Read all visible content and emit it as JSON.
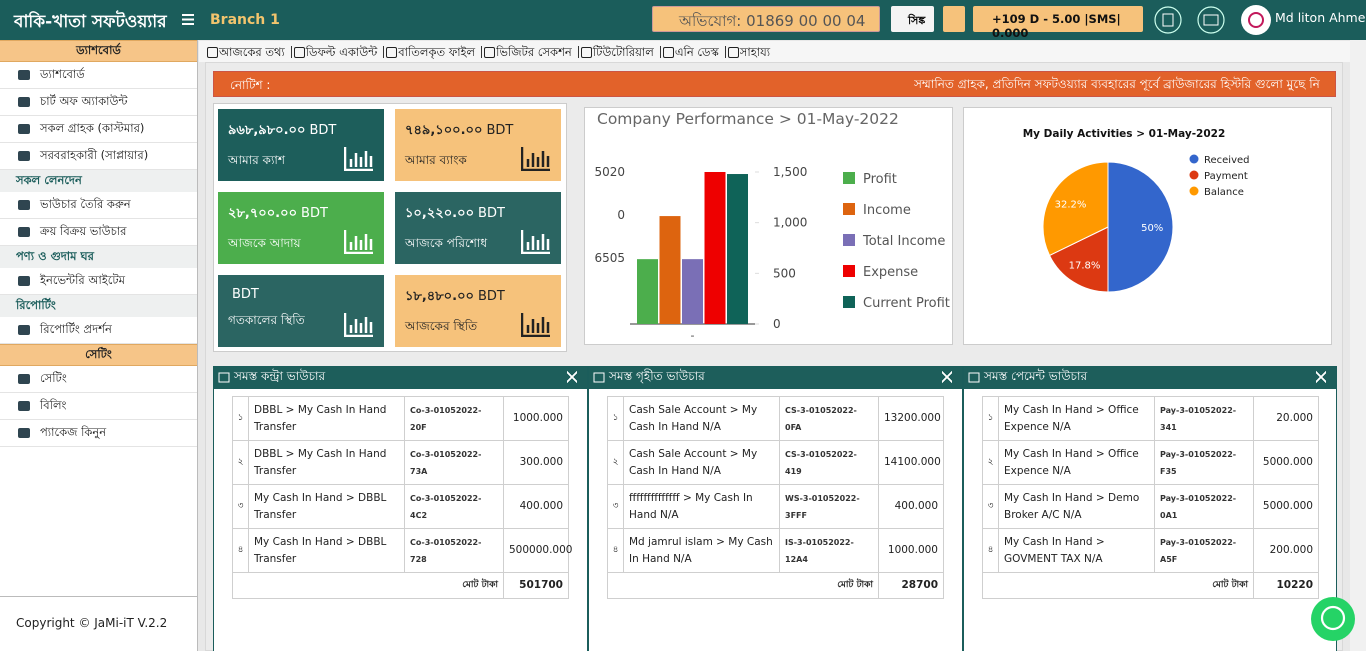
{
  "header": {
    "brand": "বাকি-খাতা সফটওয়্যার",
    "branch": "Branch 1",
    "complaint": "অভিযোগ: 01869 00 00 04",
    "sync": "সিঙ্ক",
    "balance": "+109 D - 5.00 |SMS| 0.000",
    "user": "Md liton Ahme"
  },
  "sidebar": {
    "menu": [
      {
        "type": "section",
        "label": "ড্যাশবোর্ড"
      },
      {
        "type": "item",
        "label": "ড্যাশবোর্ড"
      },
      {
        "type": "item",
        "label": "চার্ট অফ অ্যাকাউন্ট"
      },
      {
        "type": "item",
        "label": "সকল গ্রাহক (কাস্টমার)"
      },
      {
        "type": "item",
        "label": "সরবরাহকারী (সাপ্লায়ার)"
      },
      {
        "type": "group",
        "label": "সকল লেনদেন"
      },
      {
        "type": "item",
        "label": "ভাউচার তৈরি করুন"
      },
      {
        "type": "item",
        "label": "ক্রয় বিক্রয় ভাউচার"
      },
      {
        "type": "group",
        "label": "পণ্য ও গুদাম ঘর"
      },
      {
        "type": "item",
        "label": "ইনভেন্টরি আইটেম"
      },
      {
        "type": "group",
        "label": "রিপোর্টিং"
      },
      {
        "type": "item",
        "label": "রিপোর্টিং প্রদর্শন"
      },
      {
        "type": "section",
        "label": "সেটিং"
      },
      {
        "type": "item",
        "label": "সেটিং"
      },
      {
        "type": "item",
        "label": "বিলিং"
      },
      {
        "type": "item",
        "label": "প্যাকেজ কিনুন"
      }
    ],
    "copyright": "Copyright © JaMi-iT V.2.2"
  },
  "nav": [
    "আজকের তথ্য",
    "ডিফল্ট একাউন্ট",
    "বাতিলকৃত ফাইল",
    "ভিজিটর সেকশন",
    "টিউটোরিয়াল",
    "এনি ডেস্ক",
    "সাহায্য"
  ],
  "notice": {
    "label": "নোটিশ :",
    "text": "সম্মানিত গ্রাহক, প্রতিদিন সফটওয়্যার ব্যবহারের পূর্বে ব্রাউজারের হিস্টরি গুলো মুছে নি"
  },
  "cards": [
    {
      "amount": "৯৬৮,৯৮০.০০",
      "currency": "BDT",
      "label": "আমার ক্যাশ",
      "color": "#1d5e5b",
      "text_color": "#ffffff"
    },
    {
      "amount": "৭৪৯,১০০.০০",
      "currency": "BDT",
      "label": "আমার ব্যাংক",
      "color": "#f6c27b",
      "text_color": "#222222"
    },
    {
      "amount": "২৮,৭০০.০০",
      "currency": "BDT",
      "label": "আজকে আদায়",
      "color": "#4cae4c",
      "text_color": "#ffffff"
    },
    {
      "amount": "১০,২২০.০০",
      "currency": "BDT",
      "label": "আজকে পরিশোধ",
      "color": "#2b6562",
      "text_color": "#ffffff"
    },
    {
      "currency": "BDT",
      "label": "গতকালের স্থিতি",
      "color": "#2b6562",
      "text_color": "#ffffff"
    },
    {
      "amount": "১৮,৪৮০.০০",
      "currency": "BDT",
      "label": "আজকের স্থিতি",
      "color": "#f6c27b",
      "text_color": "#222222"
    }
  ],
  "performance_chart": {
    "type": "bar",
    "title": "Company Performance > 01-May-2022",
    "categories": [
      "-"
    ],
    "series": [
      {
        "name": "Profit",
        "color": "#4cae4c",
        "values": [
          640
        ]
      },
      {
        "name": "Income",
        "color": "#dd640f",
        "values": [
          1065
        ]
      },
      {
        "name": "Total Income",
        "color": "#7a6fb6",
        "values": [
          640
        ]
      },
      {
        "name": "Expense",
        "color": "#ee0000",
        "values": [
          1500
        ]
      },
      {
        "name": "Current Profit",
        "color": "#0f6358",
        "values": [
          1480
        ]
      }
    ],
    "ylim": [
      0,
      1500
    ],
    "yticks": [
      0,
      500,
      {
        "value": 1000,
        "label": "1,000"
      },
      {
        "value": 1500,
        "label": "1,500"
      }
    ],
    "left_labels": [
      5020,
      0,
      6505
    ]
  },
  "activity_chart": {
    "type": "pie",
    "title": "My Daily Activities > 01-May-2022",
    "categories": [
      "Received",
      "Payment",
      "Balance"
    ],
    "values": [
      50,
      17.8,
      32.2
    ],
    "value_labels": [
      "50%",
      "17.8%",
      "32.2%"
    ],
    "colors": [
      "#3366cc",
      "#dc3912",
      "#ff9900"
    ]
  },
  "vouchers": [
    {
      "title": "সমস্ত কন্ট্রা ভাউচার",
      "rows": [
        [
          "১",
          "DBBL > My Cash In Hand Transfer",
          "Co-3-01052022-20F",
          "1000.000"
        ],
        [
          "২",
          "DBBL > My Cash In Hand Transfer",
          "Co-3-01052022-73A",
          "300.000"
        ],
        [
          "৩",
          "My Cash In Hand > DBBL Transfer",
          "Co-3-01052022-4C2",
          "400.000"
        ],
        [
          "৪",
          "My Cash In Hand > DBBL Transfer",
          "Co-3-01052022-728",
          "500000.000"
        ]
      ],
      "total_label": "মোট টাকা",
      "total": 501700
    },
    {
      "title": "সমস্ত গৃহীত ভাউচার",
      "rows": [
        [
          "১",
          "Cash Sale Account > My Cash In Hand N/A",
          "CS-3-01052022-0FA",
          "13200.000"
        ],
        [
          "২",
          "Cash Sale Account > My Cash In Hand N/A",
          "CS-3-01052022-419",
          "14100.000"
        ],
        [
          "৩",
          "ffffffffffffff > My Cash In Hand N/A",
          "WS-3-01052022-3FFF",
          "400.000"
        ],
        [
          "৪",
          "Md jamrul islam > My Cash In Hand N/A",
          "IS-3-01052022-12A4",
          "1000.000"
        ]
      ],
      "total_label": "মোট টাকা",
      "total": 28700
    },
    {
      "title": "সমস্ত পেমেন্ট ভাউচার",
      "rows": [
        [
          "১",
          "My Cash In Hand > Office Expence N/A",
          "Pay-3-01052022-341",
          "20.000"
        ],
        [
          "২",
          "My Cash In Hand > Office Expence N/A",
          "Pay-3-01052022-F35",
          "5000.000"
        ],
        [
          "৩",
          "My Cash In Hand > Demo Broker A/C N/A",
          "Pay-3-01052022-0A1",
          "5000.000"
        ],
        [
          "৪",
          "My Cash In Hand > GOVMENT TAX N/A",
          "Pay-3-01052022-A5F",
          "200.000"
        ]
      ],
      "total_label": "মোট টাকা",
      "total": 10220
    }
  ]
}
